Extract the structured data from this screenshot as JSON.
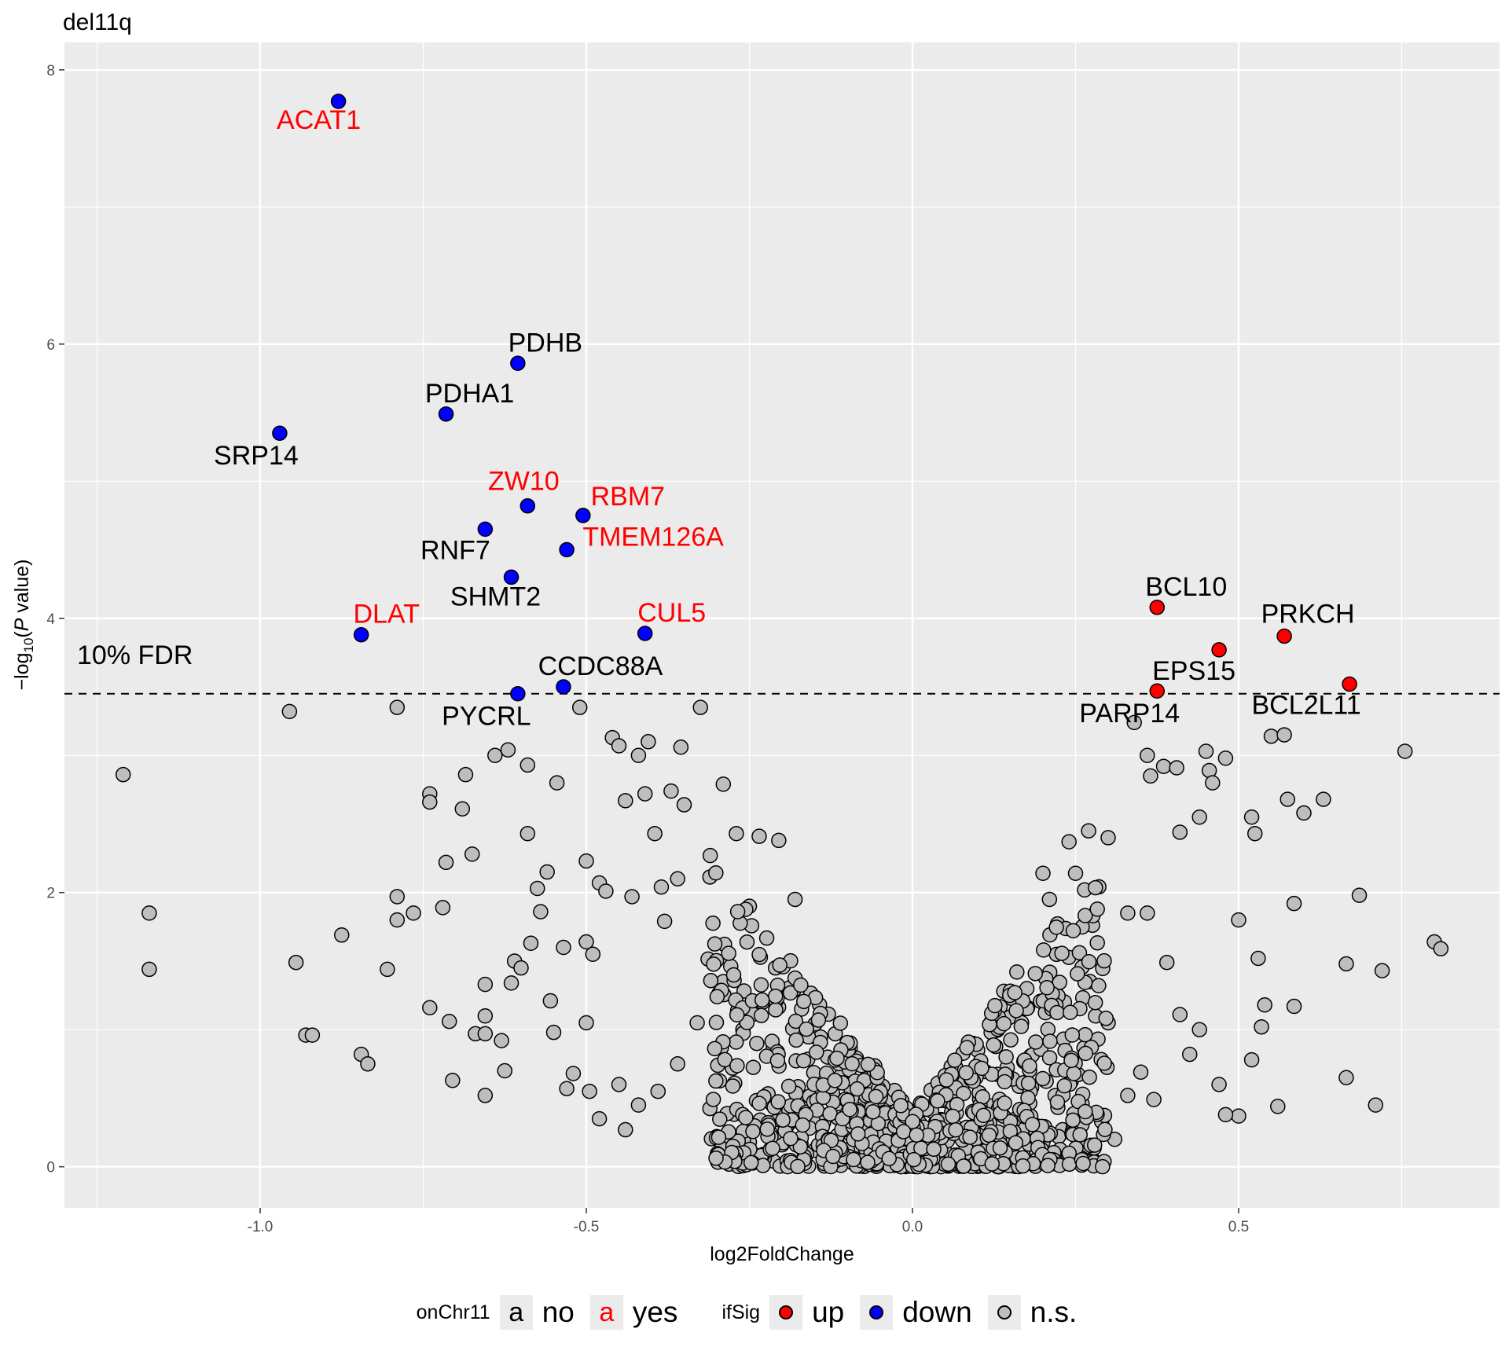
{
  "chart_data": {
    "type": "scatter",
    "title": "del11q",
    "xlabel": "log2FoldChange",
    "ylabel": "−log10(P value)",
    "xlim": [
      -1.3,
      0.9
    ],
    "ylim": [
      -0.3,
      8.2
    ],
    "x_ticks": [
      "-1.0",
      "-0.5",
      "0.0",
      "0.5"
    ],
    "x_tick_values": [
      -1.0,
      -0.5,
      0.0,
      0.5
    ],
    "y_ticks": [
      "0",
      "2",
      "4",
      "6",
      "8"
    ],
    "y_tick_values": [
      0,
      2,
      4,
      6,
      8
    ],
    "fdr_line": 3.45,
    "fdr_label": "10% FDR",
    "colors": {
      "up": "#ff0000",
      "down": "#0000ff",
      "ns": "#bebebe",
      "on_chr11": "#ff0000",
      "off_chr11": "#000000"
    },
    "labeled_points": [
      {
        "gene": "ACAT1",
        "x": -0.88,
        "y": 7.77,
        "sig": "down",
        "onChr11": "yes"
      },
      {
        "gene": "PDHB",
        "x": -0.605,
        "y": 5.86,
        "sig": "down",
        "onChr11": "no"
      },
      {
        "gene": "PDHA1",
        "x": -0.715,
        "y": 5.49,
        "sig": "down",
        "onChr11": "no"
      },
      {
        "gene": "SRP14",
        "x": -0.97,
        "y": 5.35,
        "sig": "down",
        "onChr11": "no"
      },
      {
        "gene": "ZW10",
        "x": -0.59,
        "y": 4.82,
        "sig": "down",
        "onChr11": "yes"
      },
      {
        "gene": "RBM7",
        "x": -0.505,
        "y": 4.75,
        "sig": "down",
        "onChr11": "yes"
      },
      {
        "gene": "RNF7",
        "x": -0.655,
        "y": 4.65,
        "sig": "down",
        "onChr11": "no"
      },
      {
        "gene": "TMEM126A",
        "x": -0.53,
        "y": 4.5,
        "sig": "down",
        "onChr11": "yes"
      },
      {
        "gene": "SHMT2",
        "x": -0.615,
        "y": 4.3,
        "sig": "down",
        "onChr11": "no"
      },
      {
        "gene": "DLAT",
        "x": -0.845,
        "y": 3.88,
        "sig": "down",
        "onChr11": "yes"
      },
      {
        "gene": "CUL5",
        "x": -0.41,
        "y": 3.89,
        "sig": "down",
        "onChr11": "yes"
      },
      {
        "gene": "CCDC88A",
        "x": -0.535,
        "y": 3.5,
        "sig": "down",
        "onChr11": "no"
      },
      {
        "gene": "PYCRL",
        "x": -0.605,
        "y": 3.45,
        "sig": "down",
        "onChr11": "no"
      },
      {
        "gene": "BCL10",
        "x": 0.375,
        "y": 4.08,
        "sig": "up",
        "onChr11": "no"
      },
      {
        "gene": "PRKCH",
        "x": 0.57,
        "y": 3.87,
        "sig": "up",
        "onChr11": "no"
      },
      {
        "gene": "EPS15",
        "x": 0.47,
        "y": 3.77,
        "sig": "up",
        "onChr11": "no"
      },
      {
        "gene": "BCL2L11",
        "x": 0.67,
        "y": 3.52,
        "sig": "up",
        "onChr11": "no"
      },
      {
        "gene": "PARP14",
        "x": 0.375,
        "y": 3.47,
        "sig": "up",
        "onChr11": "no"
      }
    ],
    "ns_points": [
      [
        -1.21,
        2.86
      ],
      [
        -1.17,
        1.85
      ],
      [
        -1.17,
        1.44
      ],
      [
        -0.955,
        3.32
      ],
      [
        -0.945,
        1.49
      ],
      [
        -0.93,
        0.96
      ],
      [
        -0.92,
        0.96
      ],
      [
        -0.875,
        1.69
      ],
      [
        -0.845,
        0.82
      ],
      [
        -0.835,
        0.75
      ],
      [
        -0.805,
        1.44
      ],
      [
        -0.79,
        3.35
      ],
      [
        -0.79,
        1.97
      ],
      [
        -0.79,
        1.8
      ],
      [
        -0.765,
        1.85
      ],
      [
        -0.74,
        2.72
      ],
      [
        -0.74,
        2.66
      ],
      [
        -0.74,
        1.16
      ],
      [
        -0.72,
        1.89
      ],
      [
        -0.715,
        2.22
      ],
      [
        -0.71,
        1.06
      ],
      [
        -0.705,
        0.63
      ],
      [
        -0.69,
        2.61
      ],
      [
        -0.685,
        2.86
      ],
      [
        -0.675,
        2.28
      ],
      [
        -0.67,
        0.97
      ],
      [
        -0.655,
        1.33
      ],
      [
        -0.655,
        1.1
      ],
      [
        -0.655,
        0.97
      ],
      [
        -0.655,
        0.52
      ],
      [
        -0.64,
        3.0
      ],
      [
        -0.63,
        0.92
      ],
      [
        -0.625,
        0.7
      ],
      [
        -0.62,
        3.04
      ],
      [
        -0.615,
        1.34
      ],
      [
        -0.61,
        1.5
      ],
      [
        -0.6,
        1.45
      ],
      [
        -0.59,
        2.93
      ],
      [
        -0.59,
        2.43
      ],
      [
        -0.585,
        1.63
      ],
      [
        -0.575,
        2.03
      ],
      [
        -0.57,
        1.86
      ],
      [
        -0.56,
        2.15
      ],
      [
        -0.555,
        1.21
      ],
      [
        -0.55,
        0.98
      ],
      [
        -0.545,
        2.8
      ],
      [
        -0.535,
        1.6
      ],
      [
        -0.53,
        0.57
      ],
      [
        -0.52,
        0.68
      ],
      [
        -0.51,
        3.35
      ],
      [
        -0.5,
        2.23
      ],
      [
        -0.5,
        1.64
      ],
      [
        -0.5,
        1.05
      ],
      [
        -0.495,
        0.55
      ],
      [
        -0.49,
        1.55
      ],
      [
        -0.48,
        2.07
      ],
      [
        -0.47,
        2.01
      ],
      [
        -0.46,
        3.13
      ],
      [
        -0.45,
        3.07
      ],
      [
        -0.44,
        2.67
      ],
      [
        -0.43,
        1.97
      ],
      [
        -0.42,
        3.0
      ],
      [
        -0.41,
        2.72
      ],
      [
        -0.405,
        3.1
      ],
      [
        -0.395,
        2.43
      ],
      [
        -0.385,
        2.04
      ],
      [
        -0.38,
        1.79
      ],
      [
        -0.37,
        2.74
      ],
      [
        -0.36,
        2.1
      ],
      [
        -0.355,
        3.06
      ],
      [
        -0.35,
        2.64
      ],
      [
        -0.325,
        3.35
      ],
      [
        -0.31,
        2.27
      ],
      [
        -0.29,
        2.79
      ],
      [
        -0.27,
        2.43
      ],
      [
        -0.25,
        1.9
      ],
      [
        -0.235,
        2.41
      ],
      [
        -0.205,
        2.38
      ],
      [
        -0.18,
        1.95
      ],
      [
        -0.175,
        1.33
      ],
      [
        0.34,
        3.24
      ],
      [
        0.36,
        3.0
      ],
      [
        0.365,
        2.85
      ],
      [
        0.385,
        2.92
      ],
      [
        0.405,
        2.91
      ],
      [
        0.41,
        2.44
      ],
      [
        0.44,
        2.55
      ],
      [
        0.45,
        3.03
      ],
      [
        0.455,
        2.89
      ],
      [
        0.46,
        2.8
      ],
      [
        0.48,
        2.98
      ],
      [
        0.5,
        1.8
      ],
      [
        0.52,
        2.55
      ],
      [
        0.525,
        2.43
      ],
      [
        0.53,
        1.52
      ],
      [
        0.535,
        1.02
      ],
      [
        0.55,
        3.14
      ],
      [
        0.57,
        3.15
      ],
      [
        0.575,
        2.68
      ],
      [
        0.585,
        1.92
      ],
      [
        0.6,
        2.58
      ],
      [
        0.63,
        2.68
      ],
      [
        0.665,
        1.48
      ],
      [
        0.665,
        0.65
      ],
      [
        0.685,
        1.98
      ],
      [
        0.71,
        0.45
      ],
      [
        0.72,
        1.43
      ],
      [
        0.755,
        3.03
      ],
      [
        0.8,
        1.64
      ],
      [
        0.81,
        1.59
      ],
      [
        0.52,
        0.78
      ],
      [
        0.5,
        0.37
      ],
      [
        0.48,
        0.38
      ],
      [
        0.56,
        0.44
      ],
      [
        0.54,
        1.18
      ],
      [
        0.585,
        1.17
      ],
      [
        0.44,
        1.0
      ],
      [
        0.425,
        0.82
      ],
      [
        0.47,
        0.6
      ],
      [
        0.41,
        1.11
      ],
      [
        0.39,
        1.49
      ],
      [
        0.37,
        0.49
      ],
      [
        0.35,
        0.69
      ],
      [
        0.33,
        0.52
      ],
      [
        0.31,
        0.2
      ],
      [
        0.29,
        0.33
      ],
      [
        0.27,
        0.14
      ],
      [
        0.3,
        1.05
      ],
      [
        0.33,
        1.85
      ],
      [
        0.36,
        1.85
      ],
      [
        0.2,
        2.14
      ],
      [
        0.24,
        2.37
      ],
      [
        0.25,
        2.14
      ],
      [
        0.27,
        2.45
      ],
      [
        0.3,
        2.4
      ],
      [
        0.21,
        1.95
      ],
      [
        0.16,
        1.42
      ],
      [
        0.14,
        1.28
      ],
      [
        0.12,
        1.05
      ],
      [
        0.1,
        0.85
      ],
      [
        0.08,
        0.62
      ],
      [
        0.06,
        0.4
      ],
      [
        0.04,
        0.25
      ],
      [
        0.02,
        0.1
      ],
      [
        0.03,
        0.05
      ],
      [
        -0.03,
        0.06
      ],
      [
        -0.05,
        0.2
      ],
      [
        -0.07,
        0.35
      ],
      [
        -0.09,
        0.5
      ],
      [
        -0.11,
        0.66
      ],
      [
        -0.13,
        0.8
      ],
      [
        -0.15,
        0.95
      ],
      [
        -0.17,
        1.15
      ],
      [
        -0.19,
        1.3
      ],
      [
        -0.21,
        1.45
      ],
      [
        -0.23,
        1.2
      ],
      [
        -0.26,
        1.0
      ],
      [
        -0.29,
        1.35
      ],
      [
        -0.33,
        1.05
      ],
      [
        -0.36,
        0.75
      ],
      [
        -0.39,
        0.55
      ],
      [
        -0.42,
        0.45
      ],
      [
        -0.45,
        0.6
      ],
      [
        -0.48,
        0.35
      ],
      [
        -0.44,
        0.27
      ],
      [
        -0.3,
        0.22
      ],
      [
        -0.25,
        0.18
      ],
      [
        -0.2,
        0.16
      ],
      [
        -0.15,
        0.12
      ],
      [
        -0.1,
        0.08
      ],
      [
        0.1,
        0.12
      ],
      [
        0.15,
        0.15
      ],
      [
        0.2,
        0.18
      ],
      [
        0.23,
        0.27
      ],
      [
        0.26,
        0.46
      ]
    ],
    "legend": {
      "onChr11": {
        "title": "onChr11",
        "key_glyph": "a",
        "entries": [
          "no",
          "yes"
        ]
      },
      "ifSig": {
        "title": "ifSig",
        "entries": [
          "up",
          "down",
          "n.s."
        ]
      }
    }
  }
}
